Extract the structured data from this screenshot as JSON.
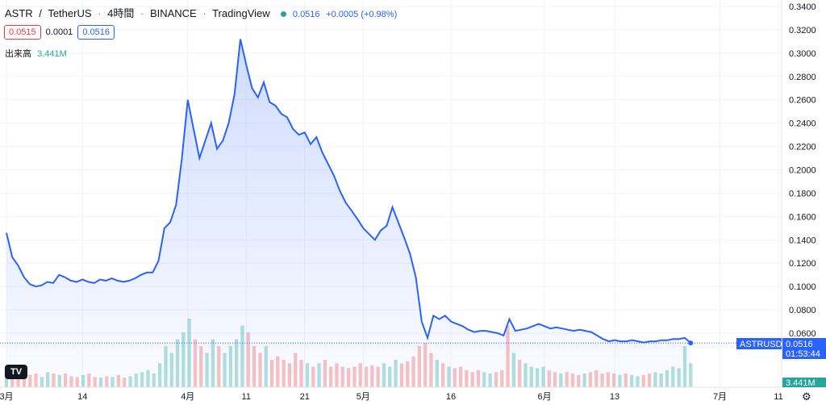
{
  "header": {
    "symbol": "ASTR",
    "separator": "/",
    "quote": "TetherUS",
    "interval": "4時間",
    "exchange": "BINANCE",
    "source": "TradingView",
    "dots": "·",
    "last": "0.0516",
    "change": "+0.0005 (+0.98%)"
  },
  "quote_bar": {
    "sell": "0.0515",
    "spread": "0.0001",
    "buy": "0.0516"
  },
  "volume": {
    "label": "出来高",
    "value": "3.441M"
  },
  "price_scale": {
    "ticks": [
      "0.3400",
      "0.3200",
      "0.3000",
      "0.2800",
      "0.2600",
      "0.2400",
      "0.2200",
      "0.2000",
      "0.1800",
      "0.1600",
      "0.1400",
      "0.1200",
      "0.1000",
      "0.0800",
      "0.0600"
    ],
    "last_label": "ASTRUSDT",
    "last_price": "0.0516",
    "countdown": "01:53:44",
    "volume_tag": "3.441M"
  },
  "time_scale": {
    "labels": [
      "3月",
      "14",
      "4月",
      "11",
      "21",
      "5月",
      "16",
      "6月",
      "13",
      "7月",
      "11"
    ]
  },
  "logo_text": "TV",
  "settings_glyph": "⚙",
  "colors": {
    "line": "#2962ff",
    "up": "#26a69a",
    "down": "#ef5350",
    "grid": "#f0f3fa",
    "axis_text": "#131722"
  },
  "chart_data": {
    "type": "area",
    "title": "ASTR / TetherUS · 4時間 · BINANCE",
    "ylim": [
      0.04,
      0.345
    ],
    "x_range": [
      "2022-03-01",
      "2022-07-11"
    ],
    "points": [
      [
        "2022-03-01",
        0.146
      ],
      [
        "2022-03-02",
        0.125
      ],
      [
        "2022-03-03",
        0.118
      ],
      [
        "2022-03-04",
        0.108
      ],
      [
        "2022-03-05",
        0.102
      ],
      [
        "2022-03-06",
        0.1
      ],
      [
        "2022-03-07",
        0.101
      ],
      [
        "2022-03-08",
        0.104
      ],
      [
        "2022-03-09",
        0.103
      ],
      [
        "2022-03-10",
        0.11
      ],
      [
        "2022-03-11",
        0.108
      ],
      [
        "2022-03-12",
        0.105
      ],
      [
        "2022-03-13",
        0.104
      ],
      [
        "2022-03-14",
        0.106
      ],
      [
        "2022-03-15",
        0.104
      ],
      [
        "2022-03-16",
        0.103
      ],
      [
        "2022-03-17",
        0.106
      ],
      [
        "2022-03-18",
        0.105
      ],
      [
        "2022-03-19",
        0.107
      ],
      [
        "2022-03-20",
        0.105
      ],
      [
        "2022-03-21",
        0.104
      ],
      [
        "2022-03-22",
        0.105
      ],
      [
        "2022-03-23",
        0.107
      ],
      [
        "2022-03-24",
        0.11
      ],
      [
        "2022-03-25",
        0.112
      ],
      [
        "2022-03-26",
        0.112
      ],
      [
        "2022-03-27",
        0.122
      ],
      [
        "2022-03-28",
        0.15
      ],
      [
        "2022-03-29",
        0.155
      ],
      [
        "2022-03-30",
        0.17
      ],
      [
        "2022-03-31",
        0.21
      ],
      [
        "2022-04-01",
        0.26
      ],
      [
        "2022-04-02",
        0.235
      ],
      [
        "2022-04-03",
        0.21
      ],
      [
        "2022-04-04",
        0.225
      ],
      [
        "2022-04-05",
        0.24
      ],
      [
        "2022-04-06",
        0.218
      ],
      [
        "2022-04-07",
        0.225
      ],
      [
        "2022-04-08",
        0.24
      ],
      [
        "2022-04-09",
        0.265
      ],
      [
        "2022-04-10",
        0.312
      ],
      [
        "2022-04-11",
        0.29
      ],
      [
        "2022-04-12",
        0.27
      ],
      [
        "2022-04-13",
        0.262
      ],
      [
        "2022-04-14",
        0.275
      ],
      [
        "2022-04-15",
        0.258
      ],
      [
        "2022-04-16",
        0.255
      ],
      [
        "2022-04-17",
        0.248
      ],
      [
        "2022-04-18",
        0.245
      ],
      [
        "2022-04-19",
        0.235
      ],
      [
        "2022-04-20",
        0.23
      ],
      [
        "2022-04-21",
        0.232
      ],
      [
        "2022-04-22",
        0.222
      ],
      [
        "2022-04-23",
        0.228
      ],
      [
        "2022-04-24",
        0.215
      ],
      [
        "2022-04-25",
        0.205
      ],
      [
        "2022-04-26",
        0.195
      ],
      [
        "2022-04-27",
        0.182
      ],
      [
        "2022-04-28",
        0.172
      ],
      [
        "2022-04-29",
        0.165
      ],
      [
        "2022-04-30",
        0.158
      ],
      [
        "2022-05-01",
        0.15
      ],
      [
        "2022-05-02",
        0.145
      ],
      [
        "2022-05-03",
        0.14
      ],
      [
        "2022-05-04",
        0.148
      ],
      [
        "2022-05-05",
        0.152
      ],
      [
        "2022-05-06",
        0.168
      ],
      [
        "2022-05-07",
        0.155
      ],
      [
        "2022-05-08",
        0.142
      ],
      [
        "2022-05-09",
        0.128
      ],
      [
        "2022-05-10",
        0.108
      ],
      [
        "2022-05-11",
        0.07
      ],
      [
        "2022-05-12",
        0.056
      ],
      [
        "2022-05-13",
        0.075
      ],
      [
        "2022-05-14",
        0.072
      ],
      [
        "2022-05-15",
        0.075
      ],
      [
        "2022-05-16",
        0.07
      ],
      [
        "2022-05-17",
        0.068
      ],
      [
        "2022-05-18",
        0.066
      ],
      [
        "2022-05-19",
        0.063
      ],
      [
        "2022-05-20",
        0.061
      ],
      [
        "2022-05-21",
        0.062
      ],
      [
        "2022-05-22",
        0.062
      ],
      [
        "2022-05-23",
        0.061
      ],
      [
        "2022-05-24",
        0.06
      ],
      [
        "2022-05-25",
        0.058
      ],
      [
        "2022-05-26",
        0.072
      ],
      [
        "2022-05-27",
        0.062
      ],
      [
        "2022-05-28",
        0.063
      ],
      [
        "2022-05-29",
        0.064
      ],
      [
        "2022-05-30",
        0.066
      ],
      [
        "2022-05-31",
        0.068
      ],
      [
        "2022-06-01",
        0.066
      ],
      [
        "2022-06-02",
        0.064
      ],
      [
        "2022-06-03",
        0.065
      ],
      [
        "2022-06-04",
        0.064
      ],
      [
        "2022-06-05",
        0.063
      ],
      [
        "2022-06-06",
        0.062
      ],
      [
        "2022-06-07",
        0.063
      ],
      [
        "2022-06-08",
        0.062
      ],
      [
        "2022-06-09",
        0.061
      ],
      [
        "2022-06-10",
        0.058
      ],
      [
        "2022-06-11",
        0.055
      ],
      [
        "2022-06-12",
        0.053
      ],
      [
        "2022-06-13",
        0.054
      ],
      [
        "2022-06-14",
        0.053
      ],
      [
        "2022-06-15",
        0.053
      ],
      [
        "2022-06-16",
        0.054
      ],
      [
        "2022-06-17",
        0.053
      ],
      [
        "2022-06-18",
        0.052
      ],
      [
        "2022-06-19",
        0.053
      ],
      [
        "2022-06-20",
        0.053
      ],
      [
        "2022-06-21",
        0.054
      ],
      [
        "2022-06-22",
        0.054
      ],
      [
        "2022-06-23",
        0.055
      ],
      [
        "2022-06-24",
        0.055
      ],
      [
        "2022-06-25",
        0.056
      ],
      [
        "2022-06-26",
        0.0516
      ]
    ],
    "volume": [
      0.3,
      0.2,
      0.25,
      0.2,
      0.18,
      0.2,
      0.15,
      0.22,
      0.2,
      0.18,
      0.2,
      0.16,
      0.15,
      0.18,
      0.2,
      0.15,
      0.14,
      0.16,
      0.15,
      0.18,
      0.14,
      0.16,
      0.2,
      0.22,
      0.25,
      0.2,
      0.35,
      0.6,
      0.5,
      0.7,
      0.8,
      1.0,
      0.7,
      0.6,
      0.5,
      0.7,
      0.6,
      0.5,
      0.6,
      0.7,
      0.9,
      0.8,
      0.6,
      0.5,
      0.6,
      0.4,
      0.45,
      0.4,
      0.35,
      0.5,
      0.4,
      0.35,
      0.3,
      0.35,
      0.4,
      0.3,
      0.35,
      0.3,
      0.28,
      0.3,
      0.35,
      0.3,
      0.32,
      0.3,
      0.35,
      0.3,
      0.4,
      0.35,
      0.38,
      0.45,
      0.6,
      0.65,
      0.5,
      0.4,
      0.35,
      0.3,
      0.28,
      0.3,
      0.25,
      0.22,
      0.25,
      0.22,
      0.2,
      0.22,
      0.25,
      0.9,
      0.5,
      0.4,
      0.35,
      0.3,
      0.28,
      0.3,
      0.25,
      0.22,
      0.2,
      0.22,
      0.2,
      0.18,
      0.2,
      0.22,
      0.25,
      0.2,
      0.22,
      0.2,
      0.18,
      0.2,
      0.18,
      0.16,
      0.18,
      0.2,
      0.22,
      0.2,
      0.25,
      0.3,
      0.28,
      0.6,
      0.35
    ]
  }
}
